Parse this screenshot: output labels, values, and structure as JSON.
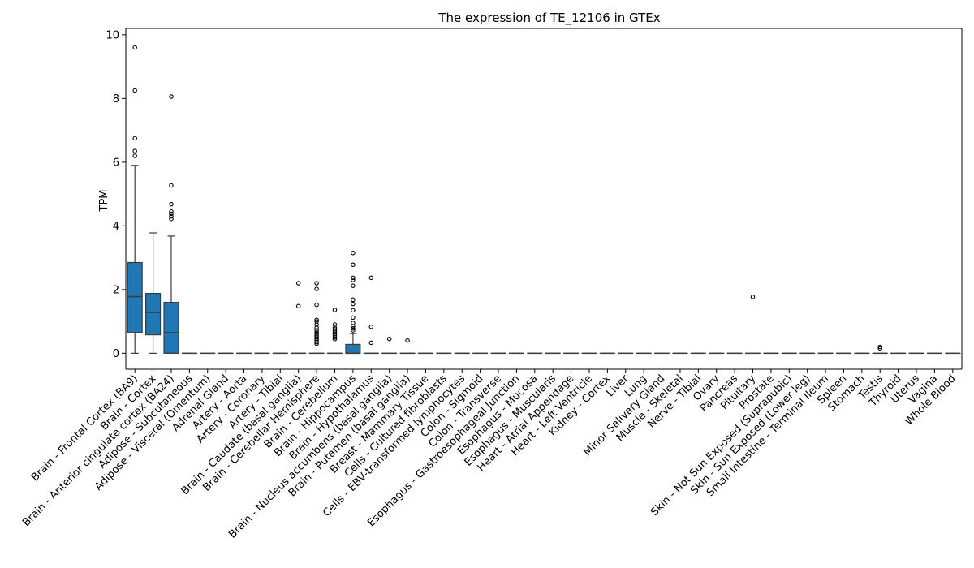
{
  "chart_data": {
    "type": "box",
    "title": "The expression of TE_12106 in GTEx",
    "xlabel": "",
    "ylabel": "TPM",
    "ylim": [
      -0.5,
      10.2
    ],
    "yticks": [
      0,
      2,
      4,
      6,
      8,
      10
    ],
    "grid": false,
    "colors": {
      "box": "#1f77b4",
      "line": "#3b3b3b"
    },
    "categories": [
      "Brain - Frontal Cortex (BA9)",
      "Brain - Cortex",
      "Brain - Anterior cingulate cortex (BA24)",
      "Adipose - Subcutaneous",
      "Adipose - Visceral (Omentum)",
      "Adrenal Gland",
      "Artery - Aorta",
      "Artery - Coronary",
      "Artery - Tibial",
      "Brain - Caudate (basal ganglia)",
      "Brain - Cerebellar Hemisphere",
      "Brain - Cerebellum",
      "Brain - Hippocampus",
      "Brain - Hypothalamus",
      "Brain - Nucleus accumbens (basal ganglia)",
      "Brain - Putamen (basal ganglia)",
      "Breast - Mammary Tissue",
      "Cells - Cultured fibroblasts",
      "Cells - EBV-transformed lymphocytes",
      "Colon - Sigmoid",
      "Colon - Transverse",
      "Esophagus - Gastroesophageal Junction",
      "Esophagus - Mucosa",
      "Esophagus - Muscularis",
      "Heart - Atrial Appendage",
      "Heart - Left Ventricle",
      "Kidney - Cortex",
      "Liver",
      "Lung",
      "Minor Salivary Gland",
      "Muscle - Skeletal",
      "Nerve - Tibial",
      "Ovary",
      "Pancreas",
      "Pituitary",
      "Prostate",
      "Skin - Not Sun Exposed (Suprapubic)",
      "Skin - Sun Exposed (Lower leg)",
      "Small Intestine - Terminal Ileum",
      "Spleen",
      "Stomach",
      "Testis",
      "Thyroid",
      "Uterus",
      "Vagina",
      "Whole Blood"
    ],
    "boxes": [
      {
        "q1": 0.65,
        "median": 1.78,
        "q3": 2.85,
        "whislo": 0.0,
        "whishi": 5.9,
        "fliers": [
          6.2,
          6.35,
          6.75,
          8.25,
          9.6
        ]
      },
      {
        "q1": 0.58,
        "median": 1.28,
        "q3": 1.88,
        "whislo": 0.0,
        "whishi": 3.78,
        "fliers": []
      },
      {
        "q1": 0.0,
        "median": 0.65,
        "q3": 1.6,
        "whislo": 0.0,
        "whishi": 3.68,
        "fliers": [
          4.22,
          4.3,
          4.38,
          4.45,
          4.68,
          5.27,
          8.06
        ]
      },
      {
        "q1": 0,
        "median": 0,
        "q3": 0,
        "whislo": 0,
        "whishi": 0,
        "fliers": []
      },
      {
        "q1": 0,
        "median": 0,
        "q3": 0,
        "whislo": 0,
        "whishi": 0,
        "fliers": []
      },
      {
        "q1": 0,
        "median": 0,
        "q3": 0,
        "whislo": 0,
        "whishi": 0,
        "fliers": []
      },
      {
        "q1": 0,
        "median": 0,
        "q3": 0,
        "whislo": 0,
        "whishi": 0,
        "fliers": []
      },
      {
        "q1": 0,
        "median": 0,
        "q3": 0,
        "whislo": 0,
        "whishi": 0,
        "fliers": []
      },
      {
        "q1": 0,
        "median": 0,
        "q3": 0,
        "whislo": 0,
        "whishi": 0,
        "fliers": []
      },
      {
        "q1": 0,
        "median": 0,
        "q3": 0,
        "whislo": 0,
        "whishi": 0,
        "fliers": [
          1.48,
          2.2
        ]
      },
      {
        "q1": 0,
        "median": 0,
        "q3": 0,
        "whislo": 0,
        "whishi": 0,
        "fliers": [
          0.3,
          0.35,
          0.4,
          0.45,
          0.5,
          0.55,
          0.6,
          0.65,
          0.72,
          0.8,
          0.9,
          1.0,
          1.05,
          1.52,
          2.02,
          2.2
        ]
      },
      {
        "q1": 0,
        "median": 0,
        "q3": 0,
        "whislo": 0,
        "whishi": 0,
        "fliers": [
          0.45,
          0.5,
          0.55,
          0.6,
          0.65,
          0.7,
          0.75,
          0.8,
          0.9,
          1.36
        ]
      },
      {
        "q1": 0.0,
        "median": 0.0,
        "q3": 0.28,
        "whislo": 0.0,
        "whishi": 0.62,
        "fliers": [
          0.72,
          0.78,
          0.85,
          0.95,
          1.12,
          1.35,
          1.55,
          1.68,
          2.12,
          2.3,
          2.37,
          2.78,
          3.15
        ]
      },
      {
        "q1": 0,
        "median": 0,
        "q3": 0,
        "whislo": 0,
        "whishi": 0,
        "fliers": [
          0.33,
          0.83,
          2.37
        ]
      },
      {
        "q1": 0,
        "median": 0,
        "q3": 0,
        "whislo": 0,
        "whishi": 0,
        "fliers": [
          0.45
        ]
      },
      {
        "q1": 0,
        "median": 0,
        "q3": 0,
        "whislo": 0,
        "whishi": 0,
        "fliers": [
          0.4
        ]
      },
      {
        "q1": 0,
        "median": 0,
        "q3": 0,
        "whislo": 0,
        "whishi": 0,
        "fliers": []
      },
      {
        "q1": 0,
        "median": 0,
        "q3": 0,
        "whislo": 0,
        "whishi": 0,
        "fliers": []
      },
      {
        "q1": 0,
        "median": 0,
        "q3": 0,
        "whislo": 0,
        "whishi": 0,
        "fliers": []
      },
      {
        "q1": 0,
        "median": 0,
        "q3": 0,
        "whislo": 0,
        "whishi": 0,
        "fliers": []
      },
      {
        "q1": 0,
        "median": 0,
        "q3": 0,
        "whislo": 0,
        "whishi": 0,
        "fliers": []
      },
      {
        "q1": 0,
        "median": 0,
        "q3": 0,
        "whislo": 0,
        "whishi": 0,
        "fliers": []
      },
      {
        "q1": 0,
        "median": 0,
        "q3": 0,
        "whislo": 0,
        "whishi": 0,
        "fliers": []
      },
      {
        "q1": 0,
        "median": 0,
        "q3": 0,
        "whislo": 0,
        "whishi": 0,
        "fliers": []
      },
      {
        "q1": 0,
        "median": 0,
        "q3": 0,
        "whislo": 0,
        "whishi": 0,
        "fliers": []
      },
      {
        "q1": 0,
        "median": 0,
        "q3": 0,
        "whislo": 0,
        "whishi": 0,
        "fliers": []
      },
      {
        "q1": 0,
        "median": 0,
        "q3": 0,
        "whislo": 0,
        "whishi": 0,
        "fliers": []
      },
      {
        "q1": 0,
        "median": 0,
        "q3": 0,
        "whislo": 0,
        "whishi": 0,
        "fliers": []
      },
      {
        "q1": 0,
        "median": 0,
        "q3": 0,
        "whislo": 0,
        "whishi": 0,
        "fliers": []
      },
      {
        "q1": 0,
        "median": 0,
        "q3": 0,
        "whislo": 0,
        "whishi": 0,
        "fliers": []
      },
      {
        "q1": 0,
        "median": 0,
        "q3": 0,
        "whislo": 0,
        "whishi": 0,
        "fliers": []
      },
      {
        "q1": 0,
        "median": 0,
        "q3": 0,
        "whislo": 0,
        "whishi": 0,
        "fliers": []
      },
      {
        "q1": 0,
        "median": 0,
        "q3": 0,
        "whislo": 0,
        "whishi": 0,
        "fliers": []
      },
      {
        "q1": 0,
        "median": 0,
        "q3": 0,
        "whislo": 0,
        "whishi": 0,
        "fliers": []
      },
      {
        "q1": 0,
        "median": 0,
        "q3": 0,
        "whislo": 0,
        "whishi": 0,
        "fliers": [
          1.77
        ]
      },
      {
        "q1": 0,
        "median": 0,
        "q3": 0,
        "whislo": 0,
        "whishi": 0,
        "fliers": []
      },
      {
        "q1": 0,
        "median": 0,
        "q3": 0,
        "whislo": 0,
        "whishi": 0,
        "fliers": []
      },
      {
        "q1": 0,
        "median": 0,
        "q3": 0,
        "whislo": 0,
        "whishi": 0,
        "fliers": []
      },
      {
        "q1": 0,
        "median": 0,
        "q3": 0,
        "whislo": 0,
        "whishi": 0,
        "fliers": []
      },
      {
        "q1": 0,
        "median": 0,
        "q3": 0,
        "whislo": 0,
        "whishi": 0,
        "fliers": []
      },
      {
        "q1": 0,
        "median": 0,
        "q3": 0,
        "whislo": 0,
        "whishi": 0,
        "fliers": []
      },
      {
        "q1": 0,
        "median": 0,
        "q3": 0,
        "whislo": 0,
        "whishi": 0,
        "fliers": [
          0.15,
          0.2
        ]
      },
      {
        "q1": 0,
        "median": 0,
        "q3": 0,
        "whislo": 0,
        "whishi": 0,
        "fliers": []
      },
      {
        "q1": 0,
        "median": 0,
        "q3": 0,
        "whislo": 0,
        "whishi": 0,
        "fliers": []
      },
      {
        "q1": 0,
        "median": 0,
        "q3": 0,
        "whislo": 0,
        "whishi": 0,
        "fliers": []
      },
      {
        "q1": 0,
        "median": 0,
        "q3": 0,
        "whislo": 0,
        "whishi": 0,
        "fliers": []
      }
    ]
  }
}
